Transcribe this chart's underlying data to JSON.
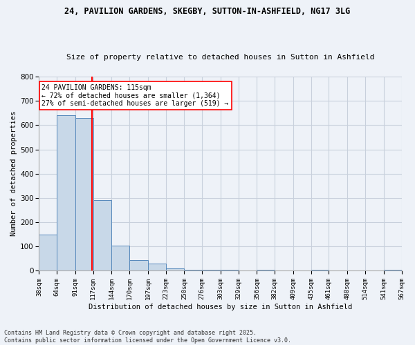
{
  "title1": "24, PAVILION GARDENS, SKEGBY, SUTTON-IN-ASHFIELD, NG17 3LG",
  "title2": "Size of property relative to detached houses in Sutton in Ashfield",
  "xlabel": "Distribution of detached houses by size in Sutton in Ashfield",
  "ylabel": "Number of detached properties",
  "footer1": "Contains HM Land Registry data © Crown copyright and database right 2025.",
  "footer2": "Contains public sector information licensed under the Open Government Licence v3.0.",
  "annotation_line1": "24 PAVILION GARDENS: 115sqm",
  "annotation_line2": "← 72% of detached houses are smaller (1,364)",
  "annotation_line3": "27% of semi-detached houses are larger (519) →",
  "subject_size": 115,
  "bar_edges": [
    38,
    64,
    91,
    117,
    144,
    170,
    197,
    223,
    250,
    276,
    303,
    329,
    356,
    382,
    409,
    435,
    461,
    488,
    514,
    541,
    567
  ],
  "bar_heights": [
    150,
    640,
    630,
    290,
    105,
    45,
    30,
    10,
    5,
    5,
    5,
    0,
    5,
    0,
    0,
    5,
    0,
    0,
    0,
    5
  ],
  "bar_color": "#c8d8e8",
  "bar_edge_color": "#5588bb",
  "red_line_x": 115,
  "ylim": [
    0,
    800
  ],
  "yticks": [
    0,
    100,
    200,
    300,
    400,
    500,
    600,
    700,
    800
  ],
  "bg_color": "#eef2f8",
  "grid_color": "#c8d0dc"
}
